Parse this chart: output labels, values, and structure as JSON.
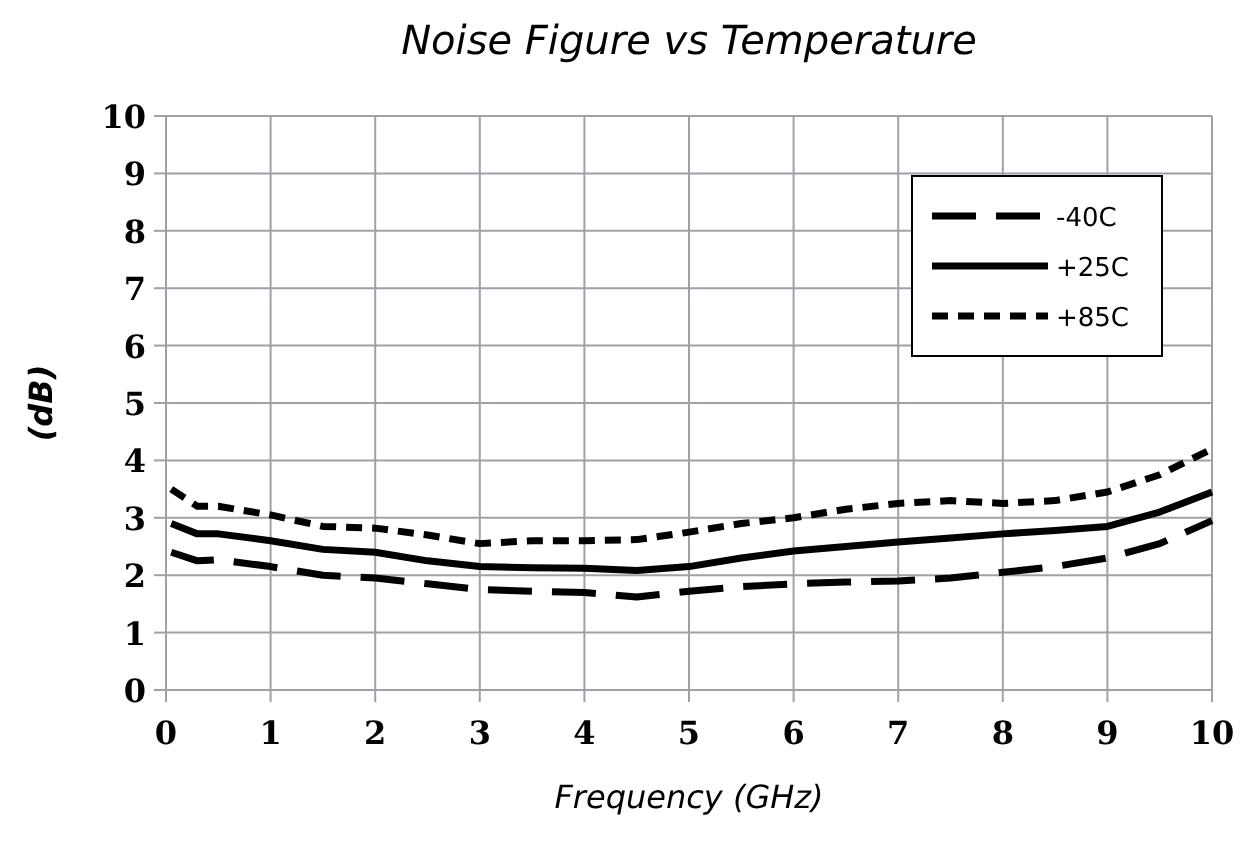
{
  "chart_data": {
    "type": "line",
    "title": "Noise Figure vs Temperature",
    "xlabel": "Frequency (GHz)",
    "ylabel": "(dB)",
    "x": [
      0.05,
      0.3,
      0.5,
      1,
      1.5,
      2,
      2.5,
      3,
      3.5,
      4,
      4.5,
      5,
      5.5,
      6,
      6.5,
      7,
      7.5,
      8,
      8.5,
      9,
      9.5,
      10
    ],
    "series": [
      {
        "name": "-40C",
        "color": "#000000",
        "line_style": "dashed",
        "values": [
          2.4,
          2.25,
          2.27,
          2.15,
          2.0,
          1.95,
          1.85,
          1.75,
          1.72,
          1.7,
          1.62,
          1.72,
          1.8,
          1.85,
          1.88,
          1.9,
          1.95,
          2.05,
          2.15,
          2.3,
          2.55,
          2.95
        ]
      },
      {
        "name": "+25C",
        "color": "#000000",
        "line_style": "solid",
        "values": [
          2.9,
          2.72,
          2.72,
          2.6,
          2.45,
          2.4,
          2.25,
          2.15,
          2.13,
          2.12,
          2.08,
          2.15,
          2.3,
          2.42,
          2.5,
          2.58,
          2.65,
          2.72,
          2.78,
          2.85,
          3.1,
          3.45
        ]
      },
      {
        "name": "+85C",
        "color": "#000000",
        "line_style": "dotted",
        "values": [
          3.5,
          3.2,
          3.2,
          3.05,
          2.85,
          2.82,
          2.7,
          2.55,
          2.6,
          2.6,
          2.62,
          2.75,
          2.9,
          3.0,
          3.15,
          3.25,
          3.3,
          3.25,
          3.3,
          3.45,
          3.75,
          4.2
        ]
      }
    ],
    "xlim": [
      0,
      10
    ],
    "xticks": [
      0,
      1,
      2,
      3,
      4,
      5,
      6,
      7,
      8,
      9,
      10
    ],
    "ylim": [
      0,
      10
    ],
    "yticks": [
      0,
      1,
      2,
      3,
      4,
      5,
      6,
      7,
      8,
      9,
      10
    ],
    "grid": true,
    "legend": "top right"
  }
}
